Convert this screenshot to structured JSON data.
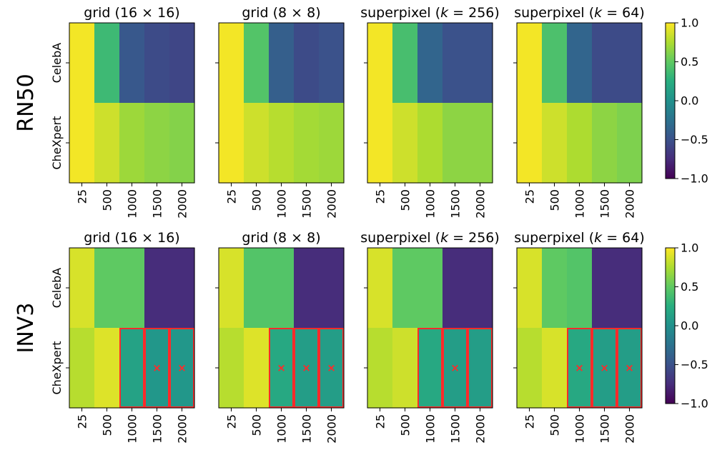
{
  "chart_data": {
    "type": "heatmap",
    "colormap": "viridis",
    "vmin": -1.0,
    "vmax": 1.0,
    "x_categories": [
      "25",
      "500",
      "1000",
      "1500",
      "2000"
    ],
    "y_categories": [
      "CelebA",
      "CheXpert"
    ],
    "colorbar_ticks": [
      "1.0",
      "0.5",
      "0.0",
      "−0.5",
      "−1.0"
    ],
    "rows": [
      {
        "label": "RN50",
        "panels": [
          {
            "title": "grid (16 × 16)",
            "values": [
              [
                0.97,
                0.35,
                -0.45,
                -0.55,
                -0.58
              ],
              [
                0.97,
                0.85,
                0.7,
                0.65,
                0.62
              ]
            ],
            "marked": [
              [
                false,
                false,
                false,
                false,
                false
              ],
              [
                false,
                false,
                false,
                false,
                false
              ]
            ],
            "crosses": [
              [
                false,
                false,
                false,
                false,
                false
              ],
              [
                false,
                false,
                false,
                false,
                false
              ]
            ]
          },
          {
            "title": "grid (8 × 8)",
            "values": [
              [
                0.97,
                0.45,
                -0.4,
                -0.55,
                -0.5
              ],
              [
                0.97,
                0.85,
                0.78,
                0.72,
                0.7
              ]
            ],
            "marked": [
              [
                false,
                false,
                false,
                false,
                false
              ],
              [
                false,
                false,
                false,
                false,
                false
              ]
            ],
            "crosses": [
              [
                false,
                false,
                false,
                false,
                false
              ],
              [
                false,
                false,
                false,
                false,
                false
              ]
            ]
          },
          {
            "title": "superpixel (k = 256)",
            "values": [
              [
                0.97,
                0.4,
                -0.35,
                -0.5,
                -0.5
              ],
              [
                0.97,
                0.85,
                0.75,
                0.65,
                0.65
              ]
            ],
            "marked": [
              [
                false,
                false,
                false,
                false,
                false
              ],
              [
                false,
                false,
                false,
                false,
                false
              ]
            ],
            "crosses": [
              [
                false,
                false,
                false,
                false,
                false
              ],
              [
                false,
                false,
                false,
                false,
                false
              ]
            ]
          },
          {
            "title": "superpixel (k = 64)",
            "values": [
              [
                0.97,
                0.42,
                -0.35,
                -0.55,
                -0.55
              ],
              [
                0.97,
                0.85,
                0.75,
                0.65,
                0.6
              ]
            ],
            "marked": [
              [
                false,
                false,
                false,
                false,
                false
              ],
              [
                false,
                false,
                false,
                false,
                false
              ]
            ],
            "crosses": [
              [
                false,
                false,
                false,
                false,
                false
              ],
              [
                false,
                false,
                false,
                false,
                false
              ]
            ]
          }
        ]
      },
      {
        "label": "INV3",
        "panels": [
          {
            "title": "grid (16 × 16)",
            "values": [
              [
                0.88,
                0.5,
                0.5,
                -0.75,
                -0.75
              ],
              [
                0.78,
                0.9,
                0.15,
                0.05,
                0.05
              ]
            ],
            "marked": [
              [
                false,
                false,
                false,
                false,
                false
              ],
              [
                false,
                false,
                true,
                true,
                true
              ]
            ],
            "crosses": [
              [
                false,
                false,
                false,
                false,
                false
              ],
              [
                false,
                false,
                false,
                true,
                true
              ]
            ]
          },
          {
            "title": "grid (8 × 8)",
            "values": [
              [
                0.88,
                0.45,
                0.45,
                -0.75,
                -0.75
              ],
              [
                0.78,
                0.9,
                0.2,
                0.1,
                0.1
              ]
            ],
            "marked": [
              [
                false,
                false,
                false,
                false,
                false
              ],
              [
                false,
                false,
                true,
                true,
                true
              ]
            ],
            "crosses": [
              [
                false,
                false,
                false,
                false,
                false
              ],
              [
                false,
                false,
                true,
                true,
                true
              ]
            ]
          },
          {
            "title": "superpixel (k = 256)",
            "values": [
              [
                0.88,
                0.5,
                0.5,
                -0.75,
                -0.75
              ],
              [
                0.78,
                0.85,
                0.2,
                0.1,
                0.1
              ]
            ],
            "marked": [
              [
                false,
                false,
                false,
                false,
                false
              ],
              [
                false,
                false,
                true,
                true,
                true
              ]
            ],
            "crosses": [
              [
                false,
                false,
                false,
                false,
                false
              ],
              [
                false,
                false,
                false,
                true,
                false
              ]
            ]
          },
          {
            "title": "superpixel (k = 64)",
            "values": [
              [
                0.88,
                0.5,
                0.45,
                -0.75,
                -0.75
              ],
              [
                0.78,
                0.88,
                0.2,
                0.1,
                0.1
              ]
            ],
            "marked": [
              [
                false,
                false,
                false,
                false,
                false
              ],
              [
                false,
                false,
                true,
                true,
                true
              ]
            ],
            "crosses": [
              [
                false,
                false,
                false,
                false,
                false
              ],
              [
                false,
                false,
                true,
                true,
                true
              ]
            ]
          }
        ]
      }
    ]
  },
  "colors": {
    "marker": "#ff2a2a",
    "frame": "#000000",
    "background": "#ffffff"
  }
}
